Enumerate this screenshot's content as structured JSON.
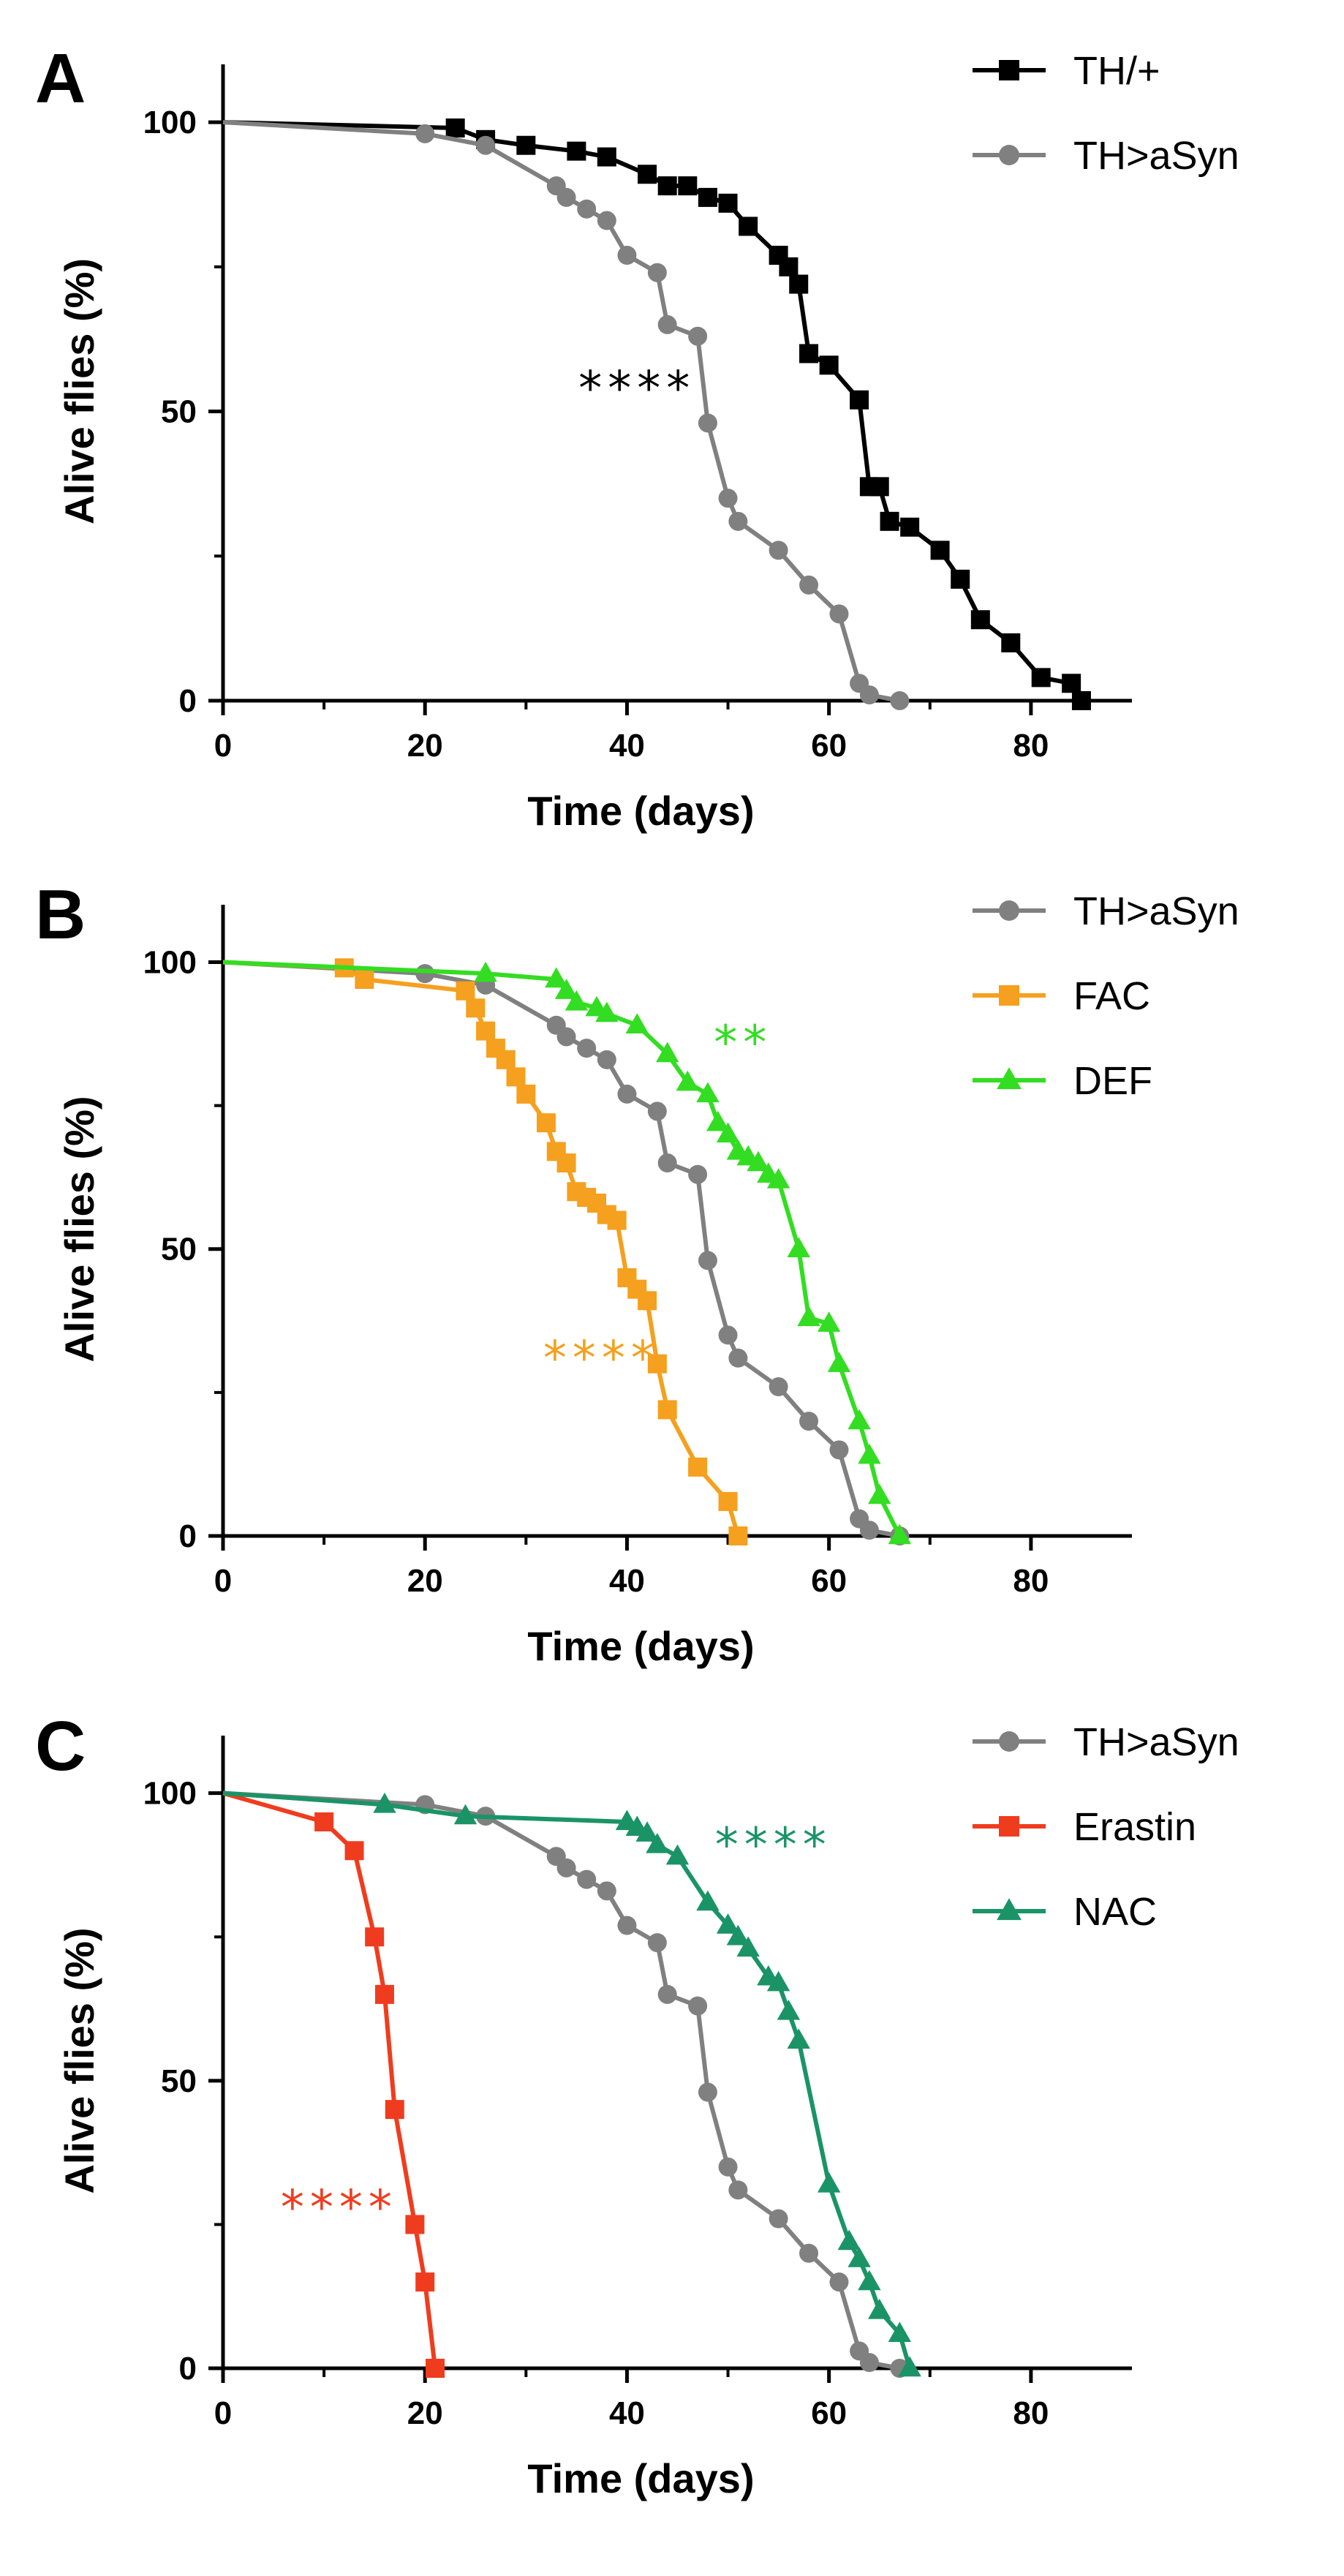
{
  "chart_data": [
    {
      "type": "line",
      "panel": "A",
      "xlabel": "Time (days)",
      "ylabel": "Alive flies (%)",
      "xlim": [
        0,
        90
      ],
      "ylim": [
        0,
        110
      ],
      "xticks": [
        "0",
        "20",
        "40",
        "60",
        "80"
      ],
      "yticks": [
        "0",
        "50",
        "100"
      ],
      "grid": false,
      "legend_position": "top-right",
      "series": [
        {
          "name": "TH/+",
          "color": "#000000",
          "marker": "square",
          "x": [
            0,
            23,
            26,
            30,
            35,
            38,
            42,
            44,
            46,
            48,
            50,
            52,
            55,
            56,
            57,
            58,
            60,
            63,
            64,
            65,
            66,
            68,
            71,
            73,
            75,
            78,
            81,
            84,
            85
          ],
          "y": [
            100,
            99,
            97,
            96,
            95,
            94,
            91,
            89,
            89,
            87,
            86,
            82,
            77,
            75,
            72,
            60,
            58,
            52,
            37,
            37,
            31,
            30,
            26,
            21,
            14,
            10,
            4,
            3,
            0
          ]
        },
        {
          "name": "TH>aSyn",
          "color": "#808080",
          "marker": "circle",
          "x": [
            0,
            20,
            26,
            33,
            34,
            36,
            38,
            40,
            43,
            44,
            47,
            48,
            50,
            51,
            55,
            58,
            61,
            63,
            64,
            67
          ],
          "y": [
            100,
            98,
            96,
            89,
            87,
            85,
            83,
            77,
            74,
            65,
            63,
            48,
            35,
            31,
            26,
            20,
            15,
            3,
            1,
            0
          ]
        }
      ],
      "annotations": [
        {
          "text": "****",
          "color": "#000000",
          "x": 41,
          "y": 54
        }
      ]
    },
    {
      "type": "line",
      "panel": "B",
      "xlabel": "Time (days)",
      "ylabel": "Alive flies (%)",
      "xlim": [
        0,
        90
      ],
      "ylim": [
        0,
        110
      ],
      "xticks": [
        "0",
        "20",
        "40",
        "60",
        "80"
      ],
      "yticks": [
        "0",
        "50",
        "100"
      ],
      "grid": false,
      "legend_position": "top-right",
      "series": [
        {
          "name": "TH>aSyn",
          "color": "#808080",
          "marker": "circle",
          "x": [
            0,
            20,
            26,
            33,
            34,
            36,
            38,
            40,
            43,
            44,
            47,
            48,
            50,
            51,
            55,
            58,
            61,
            63,
            64,
            67
          ],
          "y": [
            100,
            98,
            96,
            89,
            87,
            85,
            83,
            77,
            74,
            65,
            63,
            48,
            35,
            31,
            26,
            20,
            15,
            3,
            1,
            0
          ]
        },
        {
          "name": "FAC",
          "color": "#F5A01E",
          "marker": "square",
          "x": [
            0,
            12,
            14,
            24,
            25,
            26,
            27,
            28,
            29,
            30,
            32,
            33,
            34,
            35,
            36,
            37,
            38,
            39,
            40,
            41,
            42,
            43,
            44,
            47,
            50,
            51
          ],
          "y": [
            100,
            99,
            97,
            95,
            92,
            88,
            85,
            83,
            80,
            77,
            72,
            67,
            65,
            60,
            59,
            58,
            56,
            55,
            45,
            43,
            41,
            30,
            22,
            12,
            6,
            0
          ]
        },
        {
          "name": "DEF",
          "color": "#33DD22",
          "marker": "triangle",
          "x": [
            0,
            26,
            33,
            34,
            35,
            37,
            38,
            41,
            44,
            46,
            48,
            49,
            50,
            51,
            52,
            53,
            54,
            55,
            57,
            58,
            60,
            61,
            63,
            64,
            65,
            67
          ],
          "y": [
            100,
            98,
            97,
            95,
            93,
            92,
            91,
            89,
            84,
            79,
            77,
            72,
            70,
            67,
            66,
            65,
            63,
            62,
            50,
            38,
            37,
            30,
            20,
            14,
            7,
            0
          ]
        }
      ],
      "annotations": [
        {
          "text": "**",
          "color": "#33DD22",
          "x": 51.5,
          "y": 86
        },
        {
          "text": "****",
          "color": "#F5A01E",
          "x": 37.5,
          "y": 31
        }
      ]
    },
    {
      "type": "line",
      "panel": "C",
      "xlabel": "Time (days)",
      "ylabel": "Alive flies (%)",
      "xlim": [
        0,
        90
      ],
      "ylim": [
        0,
        110
      ],
      "xticks": [
        "0",
        "20",
        "40",
        "60",
        "80"
      ],
      "yticks": [
        "0",
        "50",
        "100"
      ],
      "grid": false,
      "legend_position": "top-right",
      "series": [
        {
          "name": "TH>aSyn",
          "color": "#808080",
          "marker": "circle",
          "x": [
            0,
            20,
            26,
            33,
            34,
            36,
            38,
            40,
            43,
            44,
            47,
            48,
            50,
            51,
            55,
            58,
            61,
            63,
            64,
            67
          ],
          "y": [
            100,
            98,
            96,
            89,
            87,
            85,
            83,
            77,
            74,
            65,
            63,
            48,
            35,
            31,
            26,
            20,
            15,
            3,
            1,
            0
          ]
        },
        {
          "name": "Erastin",
          "color": "#F03C1E",
          "marker": "square",
          "x": [
            0,
            10,
            13,
            15,
            16,
            17,
            19,
            20,
            21
          ],
          "y": [
            100,
            95,
            90,
            75,
            65,
            45,
            25,
            15,
            0
          ]
        },
        {
          "name": "NAC",
          "color": "#1A9467",
          "marker": "triangle",
          "x": [
            0,
            16,
            24,
            40,
            41,
            42,
            43,
            45,
            48,
            50,
            51,
            52,
            54,
            55,
            56,
            57,
            60,
            62,
            63,
            64,
            65,
            67,
            68
          ],
          "y": [
            100,
            98,
            96,
            95,
            94,
            93,
            91,
            89,
            81,
            77,
            75,
            73,
            68,
            67,
            62,
            57,
            32,
            22,
            19,
            15,
            10,
            6,
            0
          ]
        }
      ],
      "annotations": [
        {
          "text": "****",
          "color": "#1A9467",
          "x": 54.5,
          "y": 91
        },
        {
          "text": "****",
          "color": "#F03C1E",
          "x": 11.5,
          "y": 28
        }
      ]
    }
  ]
}
